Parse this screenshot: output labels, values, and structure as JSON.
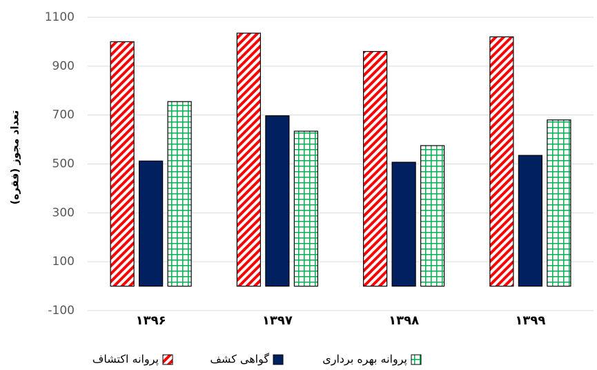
{
  "chart_data": {
    "type": "bar",
    "y_label": "تعداد مجوز (فقره)",
    "categories": [
      "۱۳۹۶",
      "۱۳۹۷",
      "۱۳۹۸",
      "۱۳۹۹"
    ],
    "series": [
      {
        "name": "پروانه اکتشاف",
        "color": "#ff0000",
        "pattern": "diagonal",
        "values": [
          1000,
          1035,
          960,
          1020
        ]
      },
      {
        "name": "گواهی کشف",
        "color": "#002060",
        "pattern": "solid",
        "values": [
          512,
          697,
          507,
          535
        ]
      },
      {
        "name": "پروانه بهره برداری",
        "color": "#00b050",
        "pattern": "grid",
        "values": [
          755,
          634,
          575,
          680
        ]
      }
    ],
    "ylim": [
      -100,
      1100
    ],
    "yticks": [
      -100,
      100,
      300,
      500,
      700,
      900,
      1100
    ],
    "grid": true,
    "legend": "bottom"
  }
}
